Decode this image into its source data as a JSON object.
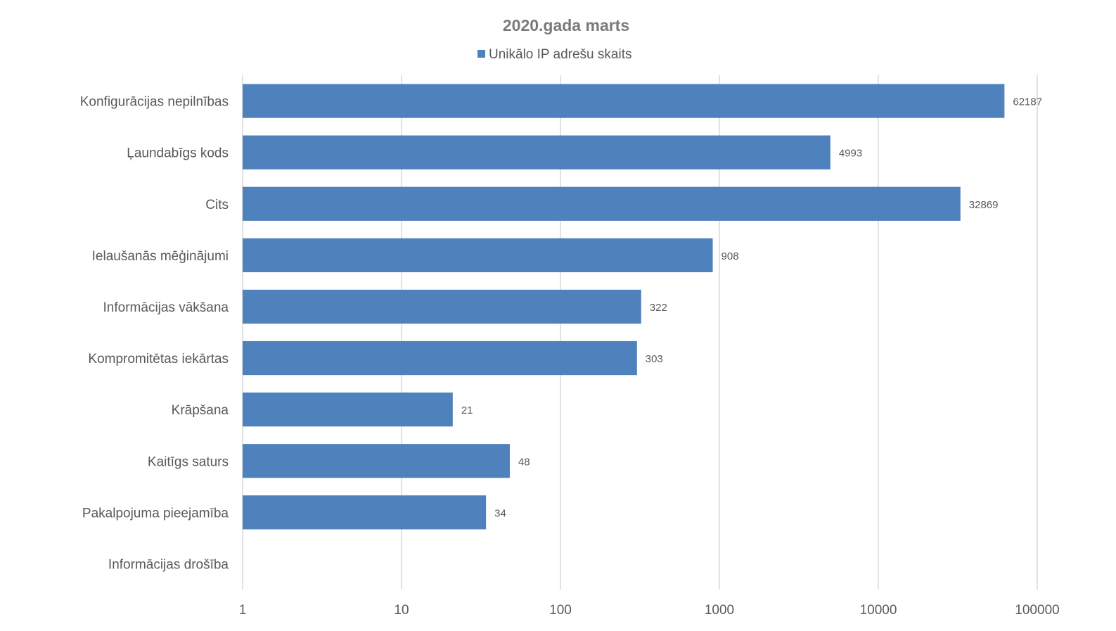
{
  "chart_data": {
    "type": "bar",
    "orientation": "horizontal",
    "title": "2020.gada marts",
    "legend": {
      "position": "top",
      "entries": [
        "Unikālo IP adrešu skaits"
      ]
    },
    "x_scale": "log",
    "xlim": [
      1,
      100000
    ],
    "x_ticks": [
      "1",
      "10",
      "100",
      "1000",
      "10000",
      "100000"
    ],
    "grid": true,
    "categories": [
      "Konfigurācijas nepilnības",
      "Ļaundabīgs kods",
      "Cits",
      "Ielaušanās mēģinājumi",
      "Informācijas vākšana",
      "Kompromitētas iekārtas",
      "Krāpšana",
      "Kaitīgs saturs",
      "Pakalpojuma pieejamība",
      "Informācijas drošība"
    ],
    "series": [
      {
        "name": "Unikālo IP adrešu skaits",
        "color": "#4f81bd",
        "values": [
          62187,
          4993,
          32869,
          908,
          322,
          303,
          21,
          48,
          34,
          null
        ],
        "labels": [
          "62187",
          "4993",
          "32869",
          "908",
          "322",
          "303",
          "21",
          "48",
          "34",
          ""
        ]
      }
    ]
  }
}
